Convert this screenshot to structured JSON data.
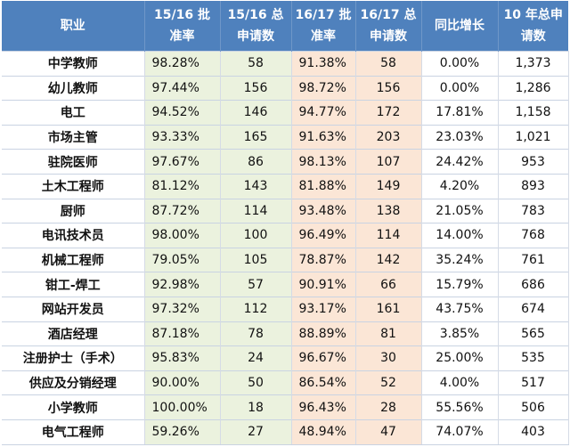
{
  "headers": {
    "occupation": "职业",
    "rate_1516": "15/16 批 准率",
    "apps_1516": "15/16 总申请数",
    "rate_1617": "16/17 批准率",
    "apps_1617": "16/17 总申请数",
    "yoy_growth": "同比增长",
    "apps_10yr": "10 年总申 请数"
  },
  "rows": [
    [
      "中学教师",
      "98.28%",
      "58",
      "91.38%",
      "58",
      "0.00%",
      "1,373"
    ],
    [
      "幼儿教师",
      "97.44%",
      "156",
      "98.72%",
      "156",
      "0.00%",
      "1,286"
    ],
    [
      "电工",
      "94.52%",
      "146",
      "94.77%",
      "172",
      "17.81%",
      "1,158"
    ],
    [
      "市场主管",
      "93.33%",
      "165",
      "91.63%",
      "203",
      "23.03%",
      "1,021"
    ],
    [
      "驻院医师",
      "97.67%",
      "86",
      "98.13%",
      "107",
      "24.42%",
      "953"
    ],
    [
      "土木工程师",
      "81.12%",
      "143",
      "81.88%",
      "149",
      "4.20%",
      "893"
    ],
    [
      "厨师",
      "87.72%",
      "114",
      "93.48%",
      "138",
      "21.05%",
      "783"
    ],
    [
      "电讯技术员",
      "98.00%",
      "100",
      "96.49%",
      "114",
      "14.00%",
      "768"
    ],
    [
      "机械工程师",
      "79.05%",
      "105",
      "78.87%",
      "142",
      "35.24%",
      "761"
    ],
    [
      "钳工-焊工",
      "92.98%",
      "57",
      "90.91%",
      "66",
      "15.79%",
      "686"
    ],
    [
      "网站开发员",
      "97.32%",
      "112",
      "93.17%",
      "161",
      "43.75%",
      "674"
    ],
    [
      "酒店经理",
      "87.18%",
      "78",
      "88.89%",
      "81",
      "3.85%",
      "565"
    ],
    [
      "注册护士（手术）",
      "95.83%",
      "24",
      "96.67%",
      "30",
      "25.00%",
      "535"
    ],
    [
      "供应及分销经理",
      "90.00%",
      "50",
      "86.54%",
      "52",
      "4.00%",
      "517"
    ],
    [
      "小学教师",
      "100.00%",
      "18",
      "96.43%",
      "28",
      "55.56%",
      "506"
    ],
    [
      "电气工程师",
      "59.26%",
      "27",
      "48.94%",
      "47",
      "74.07%",
      "403"
    ]
  ],
  "colors": {
    "header_bg": "#4f81bd",
    "header_text": "#ffffff",
    "col_1516_bg": "#ebf2de",
    "col_1617_bg": "#fbe6d6"
  }
}
